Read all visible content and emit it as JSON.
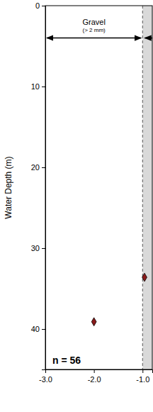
{
  "chart_data": {
    "type": "scatter",
    "y_label": "Water Depth (m)",
    "x": [
      -2.0,
      -0.96
    ],
    "values": [
      39.1,
      33.6
    ],
    "marker": "diamond",
    "color": "#8b1a1a",
    "xlim": [
      -3.0,
      -0.8
    ],
    "ylim": [
      0,
      45
    ],
    "xticks": [
      {
        "value": -3.0,
        "label": "-3.0"
      },
      {
        "value": -2.0,
        "label": "-2.0"
      },
      {
        "value": -1.0,
        "label": "-1.0"
      }
    ],
    "yticks": [
      0,
      10,
      20,
      30,
      40
    ],
    "boundary": -1.0,
    "annotations": [
      {
        "text": "Gravel",
        "subtext": "(> 2 mm)",
        "x": [
          -3.0,
          -1.0
        ],
        "y": 4
      }
    ],
    "note": "n = 56"
  }
}
